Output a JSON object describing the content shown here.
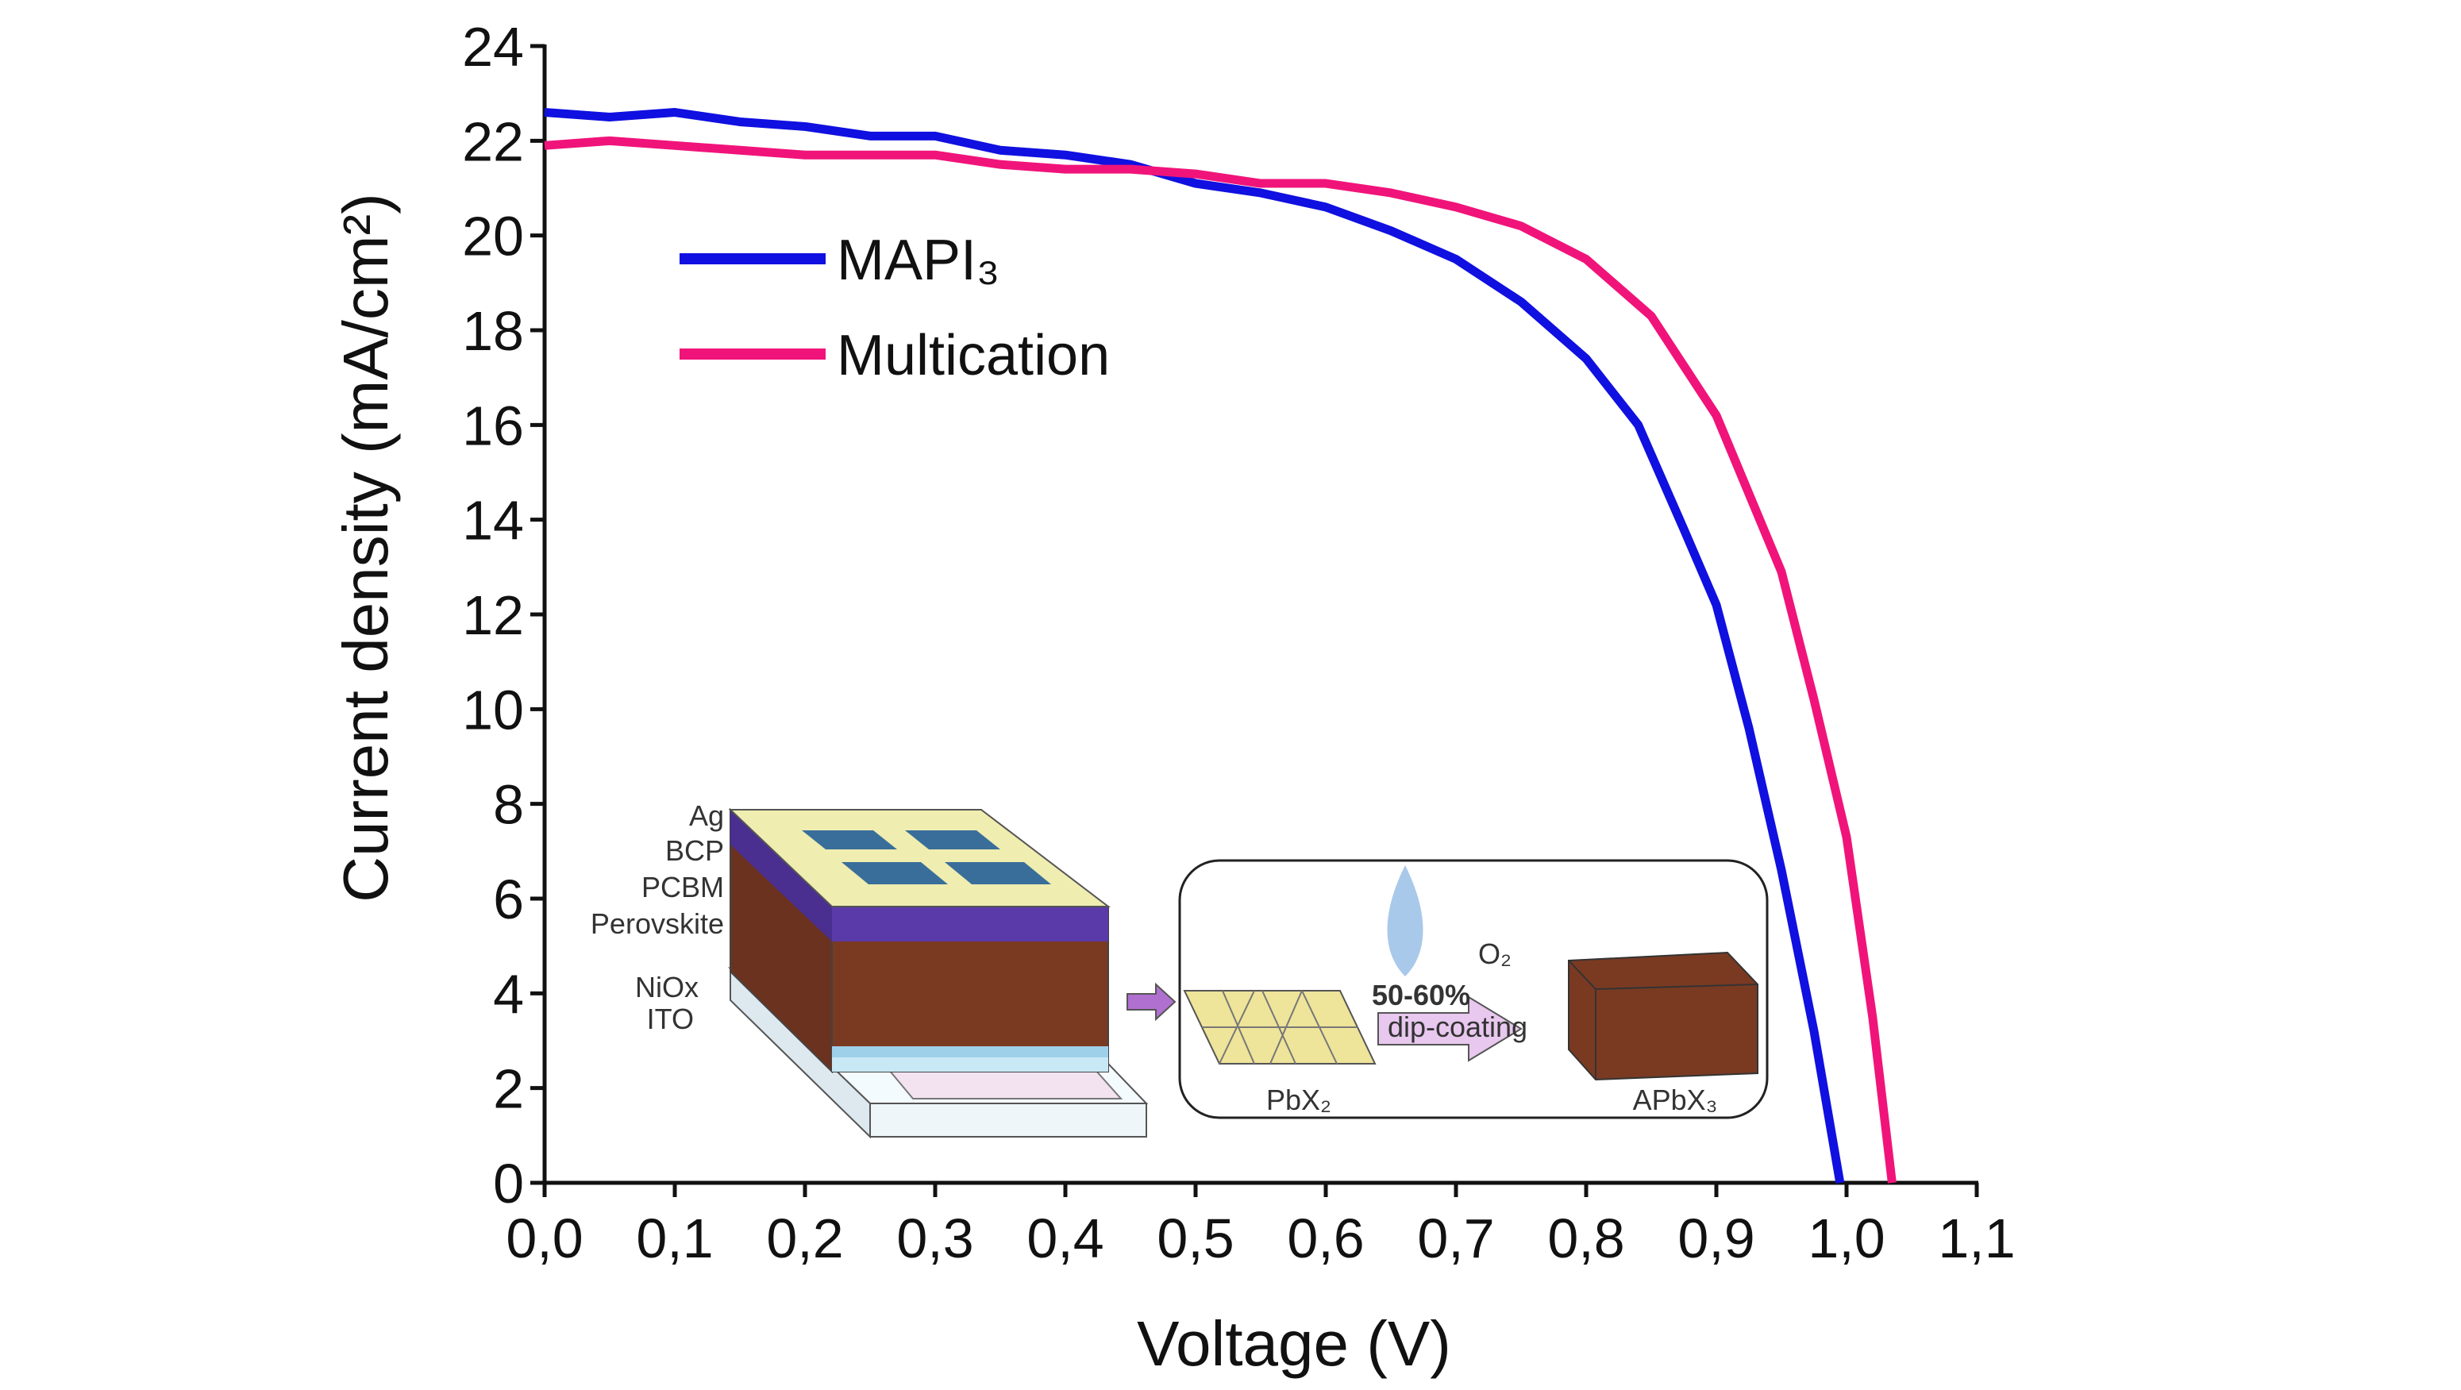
{
  "chart_data": {
    "type": "line",
    "xlabel": "Voltage (V)",
    "ylabel": "Current density (mA/cm²)",
    "xlim": [
      0,
      1.1
    ],
    "ylim": [
      0,
      24
    ],
    "xticks": [
      {
        "value": 0,
        "label": "0,0"
      },
      {
        "value": 0.1,
        "label": "0,1"
      },
      {
        "value": 0.2,
        "label": "0,2"
      },
      {
        "value": 0.3,
        "label": "0,3"
      },
      {
        "value": 0.4,
        "label": "0,4"
      },
      {
        "value": 0.5,
        "label": "0,5"
      },
      {
        "value": 0.6,
        "label": "0,6"
      },
      {
        "value": 0.7,
        "label": "0,7"
      },
      {
        "value": 0.8,
        "label": "0,8"
      },
      {
        "value": 0.9,
        "label": "0,9"
      },
      {
        "value": 1.0,
        "label": "1,0"
      },
      {
        "value": 1.1,
        "label": "1,1"
      }
    ],
    "yticks": [
      0,
      2,
      4,
      6,
      8,
      10,
      12,
      14,
      16,
      18,
      20,
      22,
      24
    ],
    "series": [
      {
        "name": "MAPI₃",
        "color": "#1010e0",
        "x": [
          0,
          0.05,
          0.1,
          0.15,
          0.2,
          0.25,
          0.3,
          0.35,
          0.4,
          0.45,
          0.5,
          0.55,
          0.6,
          0.65,
          0.7,
          0.75,
          0.8,
          0.84,
          0.875,
          0.9,
          0.925,
          0.95,
          0.975,
          0.995
        ],
        "values": [
          22.6,
          22.5,
          22.6,
          22.4,
          22.3,
          22.1,
          22.1,
          21.8,
          21.7,
          21.5,
          21.1,
          20.9,
          20.6,
          20.1,
          19.5,
          18.6,
          17.4,
          16.0,
          13.8,
          12.2,
          9.6,
          6.6,
          3.2,
          0
        ]
      },
      {
        "name": "Multication",
        "color": "#f0147a",
        "x": [
          0,
          0.05,
          0.1,
          0.15,
          0.2,
          0.25,
          0.3,
          0.35,
          0.4,
          0.45,
          0.5,
          0.55,
          0.6,
          0.65,
          0.7,
          0.75,
          0.8,
          0.85,
          0.9,
          0.95,
          0.975,
          1.0,
          1.02,
          1.035
        ],
        "values": [
          21.9,
          22.0,
          21.9,
          21.8,
          21.7,
          21.7,
          21.7,
          21.5,
          21.4,
          21.4,
          21.3,
          21.1,
          21.1,
          20.9,
          20.6,
          20.2,
          19.5,
          18.3,
          16.2,
          12.9,
          10.2,
          7.3,
          3.5,
          0
        ]
      }
    ],
    "annotations": [
      "Ag",
      "BCP",
      "PCBM",
      "Perovskite",
      "NiOx",
      "ITO",
      "O₂",
      "50-60%",
      "dip-coating",
      "PbX₂",
      "APbX₃"
    ]
  }
}
